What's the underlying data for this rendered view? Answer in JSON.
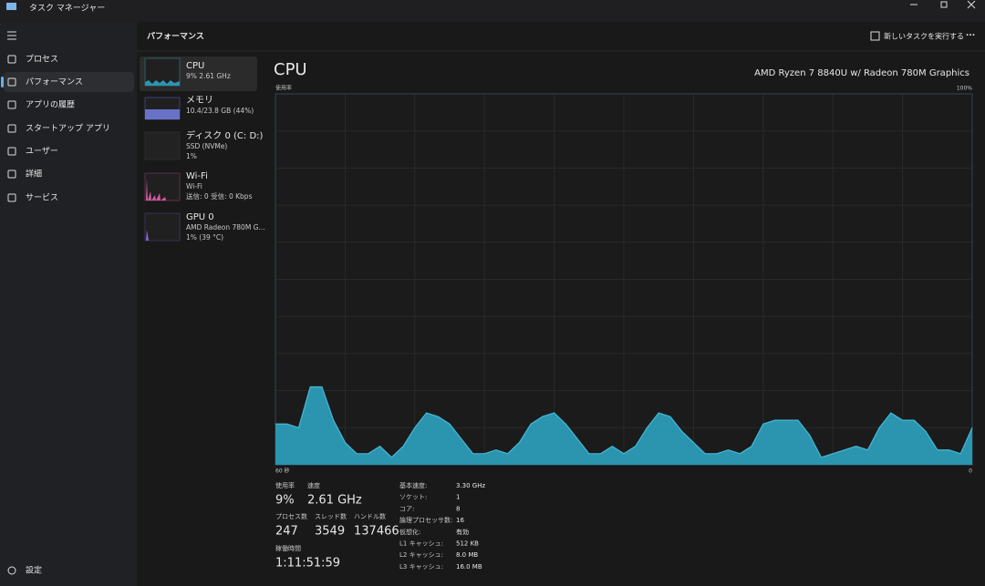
{
  "window": {
    "title": "タスク マネージャー"
  },
  "nav": [
    "プロセス",
    "パフォーマンス",
    "アプリの履歴",
    "スタートアップ アプリ",
    "ユーザー",
    "詳細",
    "サービス"
  ],
  "settings": "設定",
  "header": {
    "title": "パフォーマンス",
    "run_task": "新しいタスクを実行する"
  },
  "devices": [
    {
      "name": "CPU",
      "lines": [
        "9% 2.61 GHz"
      ]
    },
    {
      "name": "メモリ",
      "lines": [
        "10.4/23.8 GB (44%)"
      ]
    },
    {
      "name": "ディスク 0 (C: D:)",
      "lines": [
        "SSD (NVMe)",
        "1%"
      ]
    },
    {
      "name": "Wi-Fi",
      "lines": [
        "Wi-Fi",
        "送信: 0 受信: 0 Kbps"
      ]
    },
    {
      "name": "GPU 0",
      "lines": [
        "AMD Radeon 780M G...",
        "1% (39 °C)"
      ]
    }
  ],
  "chart_data": {
    "type": "area",
    "title": "CPU",
    "subtitle": "AMD Ryzen 7 8840U w/ Radeon 780M Graphics",
    "y_label": "使用率",
    "color": "#2b95b0",
    "line_color": "#45b8d8",
    "x": [
      60,
      59,
      58,
      57,
      56,
      55,
      54,
      53,
      52,
      51,
      50,
      49,
      48,
      47,
      46,
      45,
      44,
      43,
      42,
      41,
      40,
      39,
      38,
      37,
      36,
      35,
      34,
      33,
      32,
      31,
      30,
      29,
      28,
      27,
      26,
      25,
      24,
      23,
      22,
      21,
      20,
      19,
      18,
      17,
      16,
      15,
      14,
      13,
      12,
      11,
      10,
      9,
      8,
      7,
      6,
      5,
      4,
      3,
      2,
      1,
      0
    ],
    "values": [
      11,
      11,
      10,
      21,
      21,
      12,
      6,
      3,
      3,
      5,
      2,
      5,
      10,
      14,
      13,
      11,
      7,
      3,
      3,
      4,
      3,
      6,
      11,
      13,
      14,
      11,
      7,
      3,
      3,
      5,
      3,
      5,
      10,
      14,
      13,
      9,
      6,
      3,
      3,
      4,
      3,
      5,
      11,
      12,
      12,
      12,
      8,
      2,
      3,
      4,
      5,
      4,
      10,
      14,
      12,
      12,
      9,
      4,
      4,
      3,
      10
    ],
    "xlim": [
      60,
      0
    ],
    "xticks": [
      {
        "value": 60,
        "label": "60 秒"
      },
      0
    ],
    "ylim": [
      0,
      100
    ],
    "yticks": [
      {
        "value": 100,
        "label": "100%"
      }
    ],
    "grid": true
  },
  "stats": {
    "main": [
      {
        "label": "使用率",
        "value": "9%"
      },
      {
        "label": "速度",
        "value": "2.61 GHz"
      },
      {
        "label": "プロセス数",
        "value": "247"
      },
      {
        "label": "スレッド数",
        "value": "3549"
      },
      {
        "label": "ハンドル数",
        "value": "137466"
      },
      {
        "label": "稼働時間",
        "value": "1:11:51:59"
      }
    ],
    "info": [
      {
        "label": "基本速度:",
        "value": "3.30 GHz"
      },
      {
        "label": "ソケット:",
        "value": "1"
      },
      {
        "label": "コア:",
        "value": "8"
      },
      {
        "label": "論理プロセッサ数:",
        "value": "16"
      },
      {
        "label": "仮想化:",
        "value": "有効"
      },
      {
        "label": "L1 キャッシュ:",
        "value": "512 KB"
      },
      {
        "label": "L2 キャッシュ:",
        "value": "8.0 MB"
      },
      {
        "label": "L3 キャッシュ:",
        "value": "16.0 MB"
      }
    ]
  }
}
